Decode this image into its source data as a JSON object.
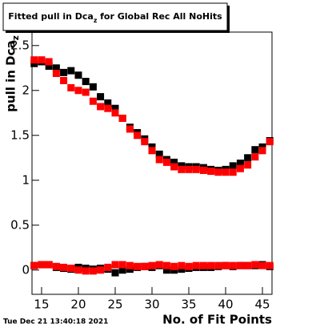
{
  "chart_data": {
    "type": "scatter",
    "title": "Fitted pull in Dca_z for Global Rec All NoHits",
    "x_label": "No. of Fit Points",
    "y_label": "pull in Dca_z",
    "timestamp": "Tue Dec 21 13:40:18 2021",
    "x": [
      14,
      15,
      16,
      17,
      18,
      19,
      20,
      21,
      22,
      23,
      24,
      25,
      26,
      27,
      28,
      29,
      30,
      31,
      32,
      33,
      34,
      35,
      36,
      37,
      38,
      39,
      40,
      41,
      42,
      43,
      44,
      45,
      46
    ],
    "series": [
      {
        "color": "#000000",
        "values": [
          2.3,
          2.32,
          2.27,
          2.25,
          2.2,
          2.22,
          2.17,
          2.1,
          2.04,
          1.93,
          1.86,
          1.8,
          1.69,
          1.59,
          1.53,
          1.46,
          1.37,
          1.29,
          1.23,
          1.2,
          1.16,
          1.15,
          1.15,
          1.14,
          1.12,
          1.11,
          1.12,
          1.16,
          1.19,
          1.25,
          1.34,
          1.37,
          1.44
        ]
      },
      {
        "color": "#ff0000",
        "values": [
          2.34,
          2.34,
          2.32,
          2.19,
          2.11,
          2.03,
          2.0,
          1.98,
          1.88,
          1.82,
          1.8,
          1.75,
          1.69,
          1.57,
          1.5,
          1.43,
          1.33,
          1.23,
          1.2,
          1.15,
          1.12,
          1.12,
          1.12,
          1.11,
          1.1,
          1.09,
          1.09,
          1.09,
          1.13,
          1.17,
          1.26,
          1.33,
          1.43
        ]
      },
      {
        "color": "#000000",
        "values": [
          0.05,
          0.06,
          0.06,
          0.03,
          0.02,
          0.01,
          0.03,
          0.02,
          0.01,
          0.02,
          0.01,
          -0.03,
          0.0,
          0.01,
          0.03,
          0.04,
          0.03,
          0.05,
          0.0,
          0.0,
          0.01,
          0.02,
          0.03,
          0.03,
          0.03,
          0.04,
          0.05,
          0.04,
          0.05,
          0.05,
          0.05,
          0.06,
          0.04
        ]
      },
      {
        "color": "#ff0000",
        "values": [
          0.05,
          0.06,
          0.06,
          0.04,
          0.03,
          0.02,
          0.0,
          -0.01,
          -0.01,
          0.0,
          0.03,
          0.06,
          0.06,
          0.05,
          0.04,
          0.04,
          0.05,
          0.06,
          0.05,
          0.04,
          0.05,
          0.04,
          0.05,
          0.05,
          0.05,
          0.05,
          0.05,
          0.05,
          0.05,
          0.05,
          0.06,
          0.05,
          0.05
        ]
      }
    ],
    "xlim": [
      13.7,
      46.3
    ],
    "xticks": [
      15,
      20,
      25,
      30,
      35,
      40,
      45
    ],
    "ylim": [
      -0.27,
      2.65
    ],
    "yticks": [
      0,
      0.5,
      1,
      1.5,
      2,
      2.5
    ]
  }
}
